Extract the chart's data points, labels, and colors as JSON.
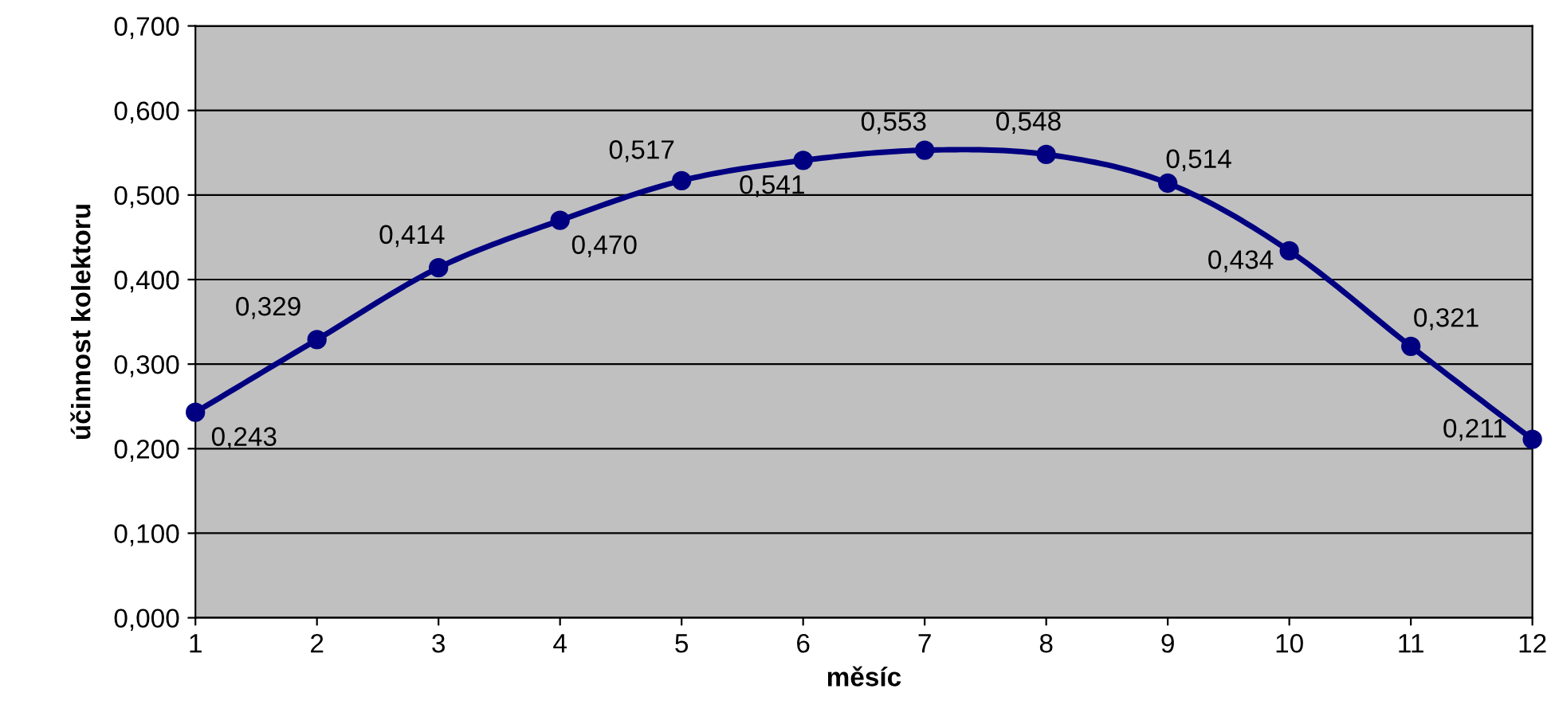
{
  "chart_data": {
    "type": "line",
    "xlabel": "měsíc",
    "ylabel": "účinnost kolektoru",
    "x": [
      1,
      2,
      3,
      4,
      5,
      6,
      7,
      8,
      9,
      10,
      11,
      12
    ],
    "series": [
      {
        "color": "#000080",
        "values": [
          0.243,
          0.329,
          0.414,
          0.47,
          0.517,
          0.541,
          0.553,
          0.548,
          0.514,
          0.434,
          0.321,
          0.211
        ],
        "value_labels": [
          "0,243",
          "0,329",
          "0,414",
          "0,470",
          "0,517",
          "0,541",
          "0,553",
          "0,548",
          "0,514",
          "0,434",
          "0,321",
          "0,211"
        ]
      }
    ],
    "xlim": [
      1,
      12
    ],
    "xticks": [
      1,
      2,
      3,
      4,
      5,
      6,
      7,
      8,
      9,
      10,
      11,
      12
    ],
    "ylim": [
      0,
      0.7
    ],
    "yticks": [
      {
        "value": 0,
        "label": "0,000"
      },
      {
        "value": 0.1,
        "label": "0,100"
      },
      {
        "value": 0.2,
        "label": "0,200"
      },
      {
        "value": 0.3,
        "label": "0,300"
      },
      {
        "value": 0.4,
        "label": "0,400"
      },
      {
        "value": 0.5,
        "label": "0,500"
      },
      {
        "value": 0.6,
        "label": "0,600"
      },
      {
        "value": 0.7,
        "label": "0,700"
      }
    ],
    "grid": "y",
    "marker": "circle",
    "line_style": "solid"
  }
}
